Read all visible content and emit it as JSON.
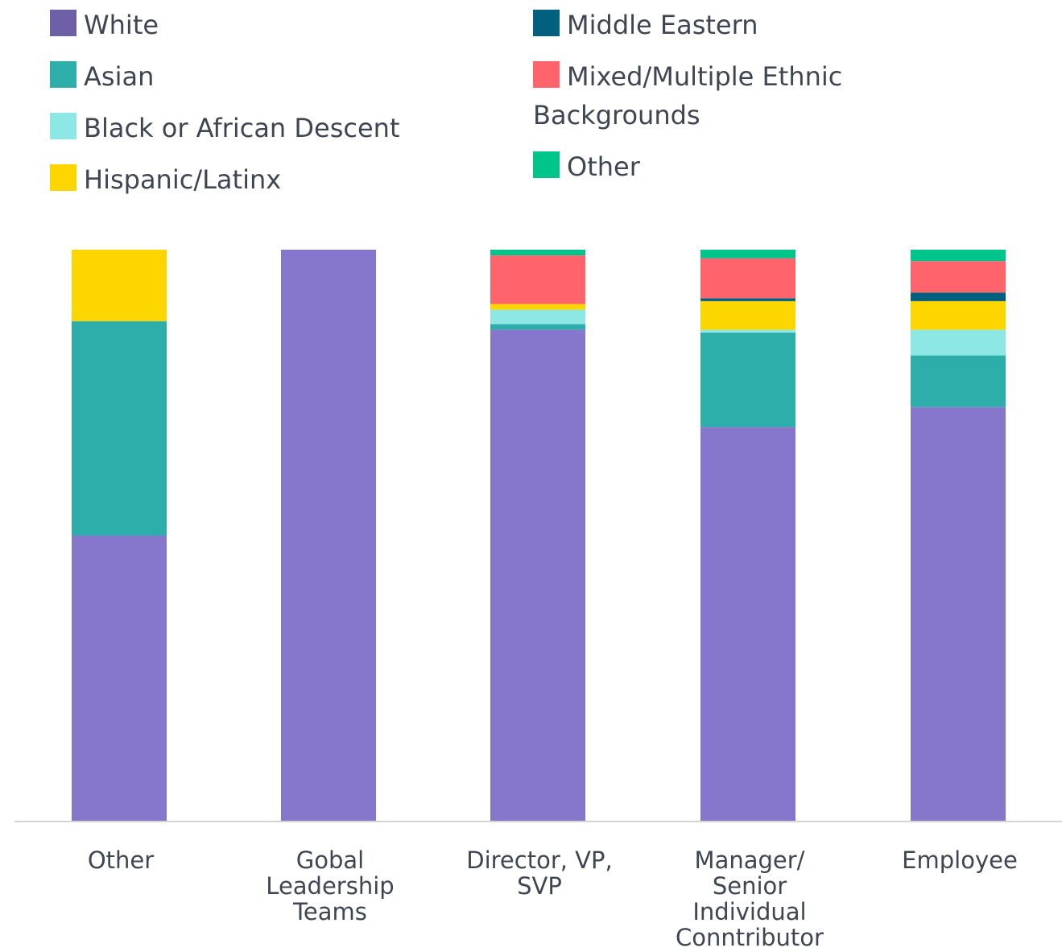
{
  "chart_data": {
    "type": "bar",
    "stacked": true,
    "normalized": true,
    "legend_position": "top",
    "grid": false,
    "ylim": [
      0,
      100
    ],
    "categories": [
      "Other",
      "Gobal Leadership Teams",
      "Director, VP, SVP",
      "Manager/ Senior Individual Conntributor",
      "Employee"
    ],
    "category_label_lines": [
      [
        "Other"
      ],
      [
        "Gobal",
        "Leadership",
        "Teams"
      ],
      [
        "Director, VP,",
        "SVP"
      ],
      [
        "Manager/",
        "Senior",
        "Individual",
        "Conntributor"
      ],
      [
        "Employee"
      ]
    ],
    "series": [
      {
        "name": "White",
        "color": "#8677cc",
        "swatch_color": "#6f5fa6",
        "values": [
          50,
          100,
          86,
          69,
          72.5
        ]
      },
      {
        "name": "Asian",
        "color": "#2daeaa",
        "values": [
          37.5,
          0,
          1,
          16.5,
          9
        ]
      },
      {
        "name": "Black or African Descent",
        "color": "#8de8e5",
        "values": [
          0,
          0,
          2.5,
          0.5,
          4.5
        ]
      },
      {
        "name": "Hispanic/Latinx",
        "color": "#fdd600",
        "values": [
          12.5,
          0,
          1,
          5,
          5
        ]
      },
      {
        "name": "Middle Eastern",
        "color": "#01607d",
        "values": [
          0,
          0,
          0,
          0.5,
          1.5
        ]
      },
      {
        "name": "Mixed/Multiple Ethnic Backgrounds",
        "color": "#ff636b",
        "values": [
          0,
          0,
          8.5,
          7,
          5.5
        ]
      },
      {
        "name": "Other",
        "color": "#00c58a",
        "values": [
          0,
          0,
          1,
          1.5,
          2
        ]
      }
    ],
    "legend": [
      {
        "lines": [
          "White"
        ],
        "column": 0
      },
      {
        "lines": [
          "Asian"
        ],
        "column": 0
      },
      {
        "lines": [
          "Black or African Descent"
        ],
        "column": 0
      },
      {
        "lines": [
          "Hispanic/Latinx"
        ],
        "column": 0
      },
      {
        "lines": [
          "Middle Eastern"
        ],
        "column": 1
      },
      {
        "lines": [
          "Mixed/Multiple Ethnic",
          "Backgrounds"
        ],
        "column": 1
      },
      {
        "lines": [
          "Other"
        ],
        "column": 1
      }
    ]
  }
}
